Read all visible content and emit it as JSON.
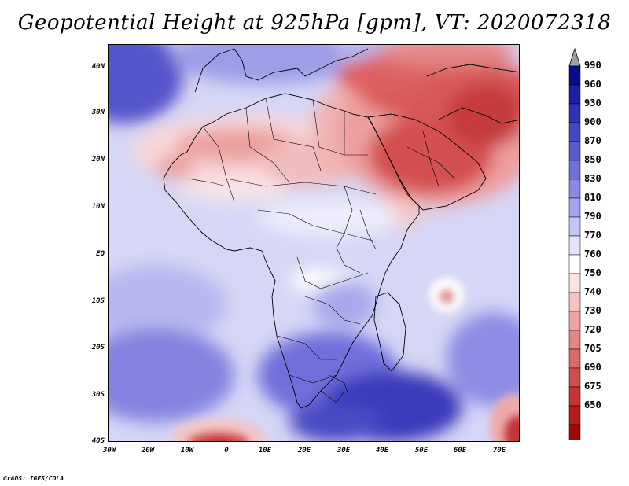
{
  "title": "Geopotential Height at 925hPa [gpm], VT: 2020072318",
  "credit": "GrADS: IGES/COLA",
  "map": {
    "lat_labels": [
      "40N",
      "30N",
      "20N",
      "10N",
      "EQ",
      "10S",
      "20S",
      "30S",
      "40S"
    ],
    "lon_labels": [
      "30W",
      "20W",
      "10W",
      "0",
      "10E",
      "20E",
      "30E",
      "40E",
      "50E",
      "60E",
      "70E"
    ]
  },
  "colorbar": {
    "levels": [
      "990",
      "960",
      "930",
      "900",
      "870",
      "850",
      "830",
      "810",
      "790",
      "770",
      "760",
      "750",
      "740",
      "730",
      "720",
      "705",
      "690",
      "675",
      "650"
    ],
    "colors": [
      "#0a0a8c",
      "#1e1ea6",
      "#3232b8",
      "#4646c4",
      "#5a5ad0",
      "#7070dc",
      "#8a8ae4",
      "#a4a4ee",
      "#c4c4f6",
      "#e2e2fc",
      "#ffffff",
      "#fce2e2",
      "#f6c2c2",
      "#eea4a4",
      "#e48686",
      "#da6a6a",
      "#d04e4e",
      "#c63434",
      "#b81a1a",
      "#a00808"
    ],
    "over_color": "#a0a0a0",
    "under_color": "#c81414"
  }
}
